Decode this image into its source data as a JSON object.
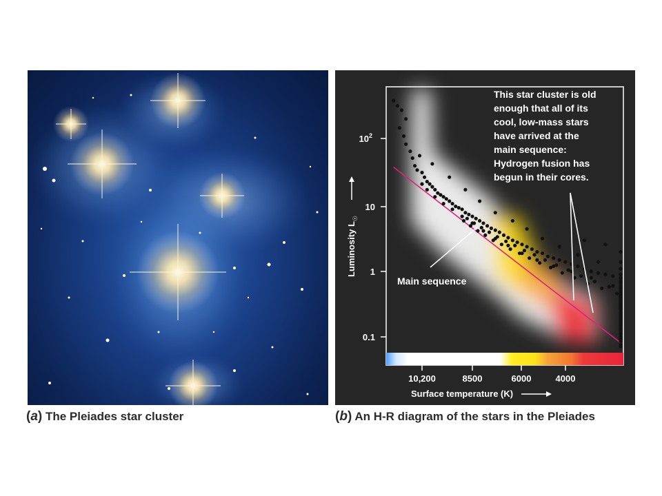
{
  "captions": {
    "a_letter": "a",
    "a_text": "The Pleiades star cluster",
    "b_letter": "b",
    "b_text": "An H-R diagram of the stars in the Pleiades"
  },
  "chart_data": {
    "type": "scatter",
    "xlabel": "Surface temperature (K)",
    "ylabel": "Luminosity L",
    "ylabel_subscript": "☉",
    "y_scale": "log",
    "ylim": [
      0.06,
      600
    ],
    "x_scale": "reciprocal",
    "x_ticks": [
      "10,200",
      "8500",
      "6000",
      "4000"
    ],
    "y_ticks": [
      "10",
      "10",
      "1",
      "0.1"
    ],
    "y_tick_exponent": "2",
    "annotation_main": "Main sequence",
    "annotation_cluster": [
      "This star cluster is old",
      "enough that all of its",
      "cool, low-mass stars",
      "have arrived at the",
      "main sequence:",
      "Hydrogen fusion has",
      "begun in their cores."
    ],
    "colors": {
      "plot_bg": "#262626",
      "points": "#111111",
      "main_sequence_line": "#e0207a",
      "text": "#ffffff"
    },
    "main_sequence": [
      [
        11500,
        40
      ],
      [
        3300,
        0.08
      ]
    ],
    "points": [
      [
        11500,
        420
      ],
      [
        11300,
        350
      ],
      [
        11100,
        300
      ],
      [
        10900,
        220
      ],
      [
        11200,
        160
      ],
      [
        11000,
        120
      ],
      [
        10900,
        90
      ],
      [
        10700,
        70
      ],
      [
        10600,
        55
      ],
      [
        10500,
        42
      ],
      [
        10400,
        36
      ],
      [
        10200,
        33
      ],
      [
        10100,
        28
      ],
      [
        10000,
        24
      ],
      [
        9900,
        22
      ],
      [
        9800,
        20
      ],
      [
        9700,
        18
      ],
      [
        9600,
        16
      ],
      [
        9500,
        15
      ],
      [
        9400,
        14
      ],
      [
        9300,
        13
      ],
      [
        9200,
        12
      ],
      [
        9100,
        11
      ],
      [
        9000,
        10
      ],
      [
        8900,
        9.5
      ],
      [
        8800,
        9
      ],
      [
        8700,
        8
      ],
      [
        8600,
        7.5
      ],
      [
        8500,
        7
      ],
      [
        8400,
        6.5
      ],
      [
        8300,
        6
      ],
      [
        8200,
        5.5
      ],
      [
        8100,
        5
      ],
      [
        8000,
        4.6
      ],
      [
        7900,
        4.3
      ],
      [
        7800,
        4
      ],
      [
        7700,
        3.6
      ],
      [
        7600,
        3.3
      ],
      [
        7500,
        3
      ],
      [
        7400,
        2.8
      ],
      [
        7300,
        2.6
      ],
      [
        7200,
        2.4
      ],
      [
        7100,
        2.2
      ],
      [
        7000,
        2.0
      ],
      [
        6900,
        1.9
      ],
      [
        6800,
        1.7
      ],
      [
        6700,
        1.6
      ],
      [
        6600,
        1.5
      ],
      [
        6500,
        1.4
      ],
      [
        6400,
        1.3
      ],
      [
        6300,
        1.2
      ],
      [
        6200,
        1.1
      ],
      [
        6100,
        1.0
      ],
      [
        6000,
        0.95
      ],
      [
        5900,
        0.9
      ],
      [
        5800,
        0.85
      ],
      [
        5700,
        0.8
      ],
      [
        5600,
        0.72
      ],
      [
        5500,
        0.66
      ],
      [
        5400,
        0.6
      ],
      [
        5300,
        0.55
      ],
      [
        5200,
        0.5
      ],
      [
        5100,
        0.46
      ],
      [
        5000,
        0.42
      ],
      [
        4900,
        0.38
      ],
      [
        4800,
        0.35
      ],
      [
        4700,
        0.32
      ],
      [
        4600,
        0.28
      ],
      [
        4500,
        0.26
      ],
      [
        4400,
        0.23
      ],
      [
        4300,
        0.21
      ],
      [
        4200,
        0.19
      ],
      [
        4100,
        0.17
      ],
      [
        4000,
        0.16
      ],
      [
        3900,
        0.15
      ],
      [
        3800,
        0.14
      ],
      [
        3700,
        0.13
      ],
      [
        3600,
        0.12
      ],
      [
        3500,
        0.11
      ],
      [
        3400,
        0.1
      ],
      [
        3300,
        0.09
      ],
      [
        10300,
        60
      ],
      [
        9800,
        45
      ],
      [
        9200,
        28
      ],
      [
        8700,
        18
      ],
      [
        8300,
        12
      ],
      [
        7900,
        8
      ],
      [
        7500,
        6
      ],
      [
        7200,
        4.5
      ],
      [
        6900,
        3.2
      ],
      [
        6600,
        2.4
      ],
      [
        6300,
        1.8
      ],
      [
        6000,
        1.4
      ],
      [
        5700,
        1.1
      ],
      [
        5400,
        0.9
      ],
      [
        5100,
        0.7
      ],
      [
        4800,
        0.55
      ],
      [
        4500,
        0.42
      ],
      [
        4200,
        0.3
      ],
      [
        3900,
        0.22
      ],
      [
        3600,
        0.18
      ],
      [
        3400,
        0.15
      ],
      [
        5600,
        2.0
      ],
      [
        5900,
        2.6
      ],
      [
        6200,
        3.0
      ],
      [
        5300,
        1.4
      ],
      [
        4700,
        0.9
      ],
      [
        4400,
        0.6
      ],
      [
        4100,
        0.4
      ],
      [
        3800,
        0.28
      ],
      [
        3500,
        0.2
      ],
      [
        3700,
        0.09
      ],
      [
        4000,
        0.12
      ],
      [
        4300,
        0.15
      ],
      [
        4600,
        0.2
      ],
      [
        4900,
        0.28
      ],
      [
        5200,
        0.36
      ],
      [
        5500,
        0.45
      ],
      [
        5800,
        0.6
      ],
      [
        6100,
        0.8
      ],
      [
        6400,
        1.0
      ],
      [
        6700,
        1.2
      ],
      [
        7000,
        1.5
      ],
      [
        7300,
        1.9
      ],
      [
        7600,
        2.5
      ],
      [
        7900,
        3.2
      ],
      [
        8200,
        4.2
      ],
      [
        8500,
        5.5
      ],
      [
        8800,
        7
      ],
      [
        9100,
        9
      ],
      [
        9400,
        11
      ],
      [
        9700,
        14
      ],
      [
        10000,
        18
      ],
      [
        10200,
        22
      ],
      [
        3450,
        0.07
      ],
      [
        3550,
        0.085
      ],
      [
        3650,
        0.1
      ],
      [
        3750,
        0.075
      ],
      [
        3850,
        0.11
      ],
      [
        3950,
        0.095
      ],
      [
        4050,
        0.13
      ],
      [
        4150,
        0.11
      ],
      [
        4250,
        0.14
      ],
      [
        4350,
        0.12
      ],
      [
        4450,
        0.17
      ],
      [
        4550,
        0.16
      ],
      [
        4650,
        0.2
      ],
      [
        4750,
        0.19
      ],
      [
        4850,
        0.24
      ],
      [
        4950,
        0.22
      ],
      [
        5050,
        0.3
      ],
      [
        5150,
        0.27
      ],
      [
        5250,
        0.34
      ],
      [
        5350,
        0.32
      ],
      [
        5450,
        0.4
      ],
      [
        5550,
        0.38
      ],
      [
        5650,
        0.5
      ],
      [
        5750,
        0.46
      ],
      [
        5850,
        0.58
      ],
      [
        5950,
        0.55
      ],
      [
        6050,
        0.7
      ],
      [
        6150,
        0.65
      ],
      [
        6250,
        0.85
      ],
      [
        6350,
        0.8
      ],
      [
        6450,
        1.05
      ],
      [
        6550,
        0.95
      ],
      [
        6650,
        1.25
      ],
      [
        6750,
        1.15
      ],
      [
        6850,
        1.5
      ],
      [
        6950,
        1.35
      ],
      [
        7050,
        1.8
      ],
      [
        7150,
        1.6
      ],
      [
        7250,
        2.1
      ],
      [
        7350,
        1.9
      ],
      [
        7450,
        2.5
      ],
      [
        7550,
        2.2
      ],
      [
        7650,
        2.9
      ],
      [
        7750,
        2.6
      ],
      [
        7850,
        3.4
      ],
      [
        7950,
        3.0
      ],
      [
        8050,
        4.0
      ],
      [
        8150,
        3.6
      ],
      [
        8250,
        4.7
      ],
      [
        8350,
        4.2
      ],
      [
        8450,
        5.5
      ],
      [
        8550,
        5.0
      ],
      [
        8650,
        6.5
      ],
      [
        8750,
        6.0
      ]
    ]
  }
}
